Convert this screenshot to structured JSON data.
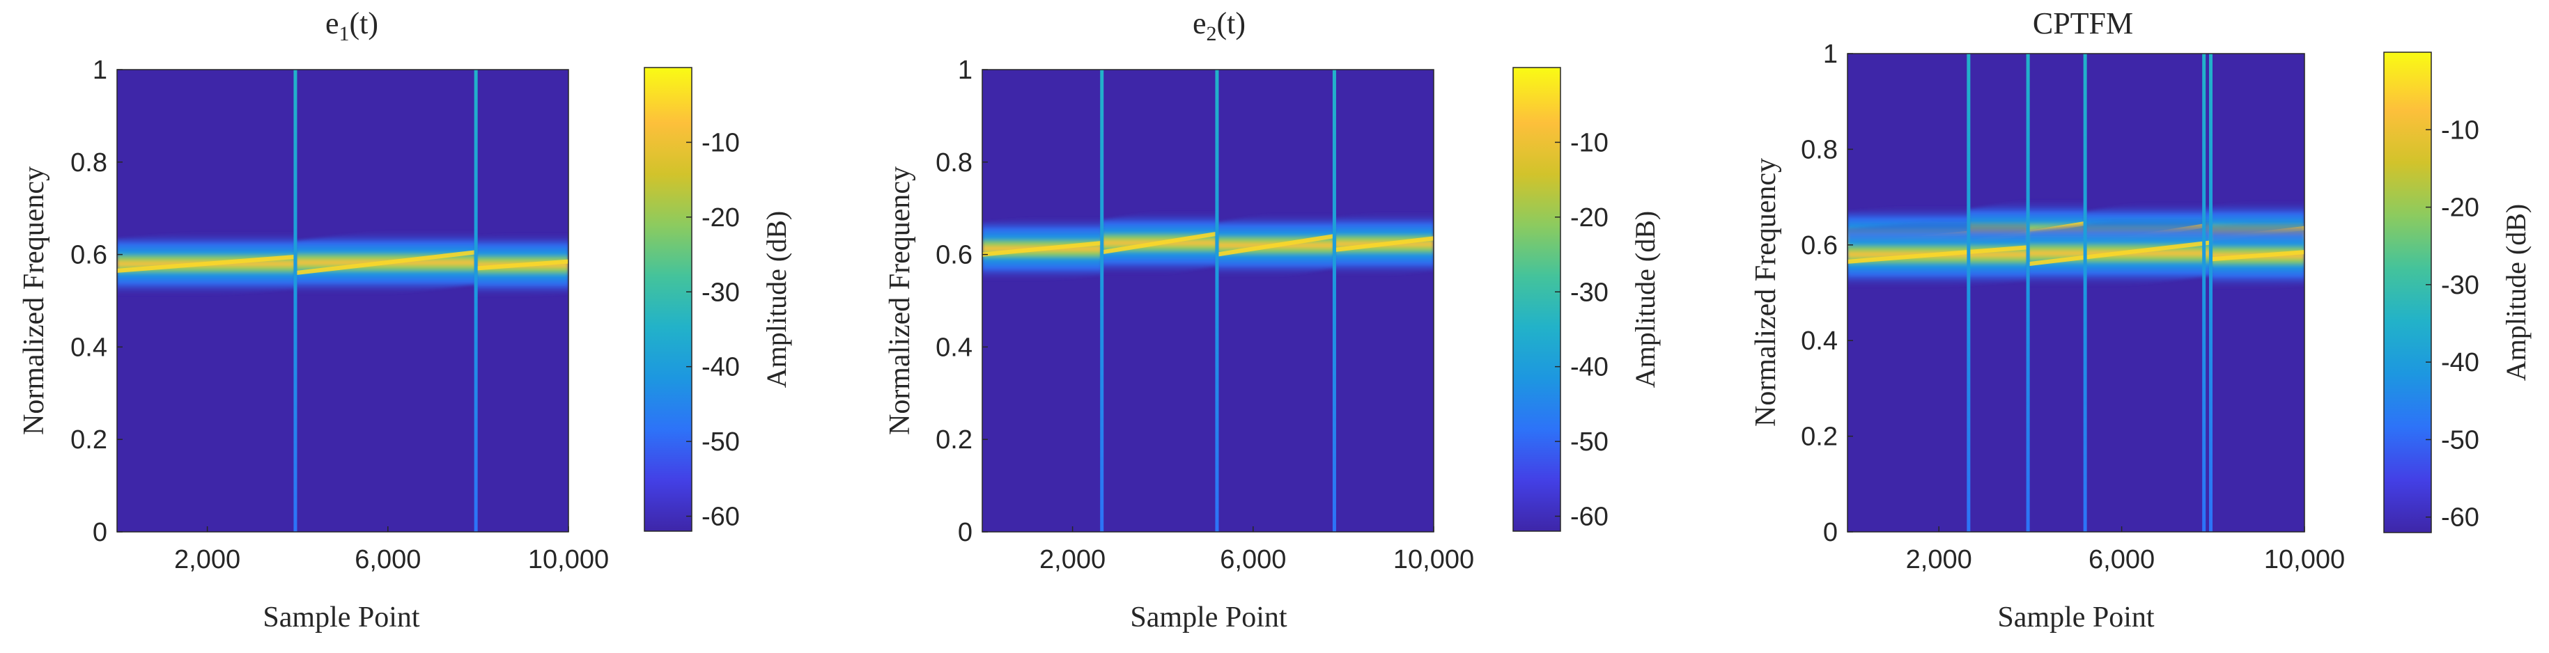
{
  "figure": {
    "description_free": true
  },
  "colors": {
    "background_dark": "#3e26a8",
    "colormap": [
      "#3e26a8",
      "#4340e6",
      "#2d73f8",
      "#1d97e0",
      "#22b2c9",
      "#44c39b",
      "#8ccb5f",
      "#d2c32b",
      "#fdc03b",
      "#f9fb14"
    ]
  },
  "chart_data": [
    {
      "type": "heatmap",
      "title_main": "e",
      "title_sub": "1",
      "title_tail": "(t)",
      "xlabel": "Sample Point",
      "ylabel": "Normalized Frequency",
      "xlim": [
        0,
        10000
      ],
      "ylim": [
        0,
        1
      ],
      "xticks": [
        2000,
        6000,
        10000
      ],
      "xtick_labels": [
        "2,000",
        "6,000",
        "10,000"
      ],
      "yticks": [
        0,
        0.2,
        0.4,
        0.6,
        0.8,
        1
      ],
      "ytick_labels": [
        "0",
        "0.2",
        "0.4",
        "0.6",
        "0.8",
        "1"
      ],
      "colorbar_label": "Amplitude (dB)",
      "colorbar_range": [
        -62,
        0
      ],
      "colorbar_ticks": [
        -10,
        -20,
        -30,
        -40,
        -50,
        -60
      ],
      "colorbar_tick_labels": [
        "-10",
        "-20",
        "-30",
        "-40",
        "-50",
        "-60"
      ],
      "boundaries": [
        3950,
        7950
      ],
      "segments": [
        {
          "x0": 0,
          "x1": 3950,
          "f0": 0.565,
          "f1": 0.595
        },
        {
          "x0": 3950,
          "x1": 7950,
          "f0": 0.56,
          "f1": 0.605
        },
        {
          "x0": 7950,
          "x1": 10000,
          "f0": 0.57,
          "f1": 0.585
        }
      ]
    },
    {
      "type": "heatmap",
      "title_main": "e",
      "title_sub": "2",
      "title_tail": "(t)",
      "xlabel": "Sample Point",
      "ylabel": "Normalized Frequency",
      "xlim": [
        0,
        10000
      ],
      "ylim": [
        0,
        1
      ],
      "xticks": [
        2000,
        6000,
        10000
      ],
      "xtick_labels": [
        "2,000",
        "6,000",
        "10,000"
      ],
      "yticks": [
        0,
        0.2,
        0.4,
        0.6,
        0.8,
        1
      ],
      "ytick_labels": [
        "0",
        "0.2",
        "0.4",
        "0.6",
        "0.8",
        "1"
      ],
      "colorbar_label": "Amplitude (dB)",
      "colorbar_range": [
        -62,
        0
      ],
      "colorbar_ticks": [
        -10,
        -20,
        -30,
        -40,
        -50,
        -60
      ],
      "colorbar_tick_labels": [
        "-10",
        "-20",
        "-30",
        "-40",
        "-50",
        "-60"
      ],
      "boundaries": [
        2650,
        5200,
        7800
      ],
      "segments": [
        {
          "x0": 0,
          "x1": 2650,
          "f0": 0.6,
          "f1": 0.625
        },
        {
          "x0": 2650,
          "x1": 5200,
          "f0": 0.605,
          "f1": 0.645
        },
        {
          "x0": 5200,
          "x1": 7800,
          "f0": 0.6,
          "f1": 0.64
        },
        {
          "x0": 7800,
          "x1": 10000,
          "f0": 0.61,
          "f1": 0.635
        }
      ]
    },
    {
      "type": "heatmap",
      "title_main": "CPTFM",
      "title_sub": "",
      "title_tail": "",
      "xlabel": "Sample Point",
      "ylabel": "Normalized Frequency",
      "xlim": [
        0,
        10000
      ],
      "ylim": [
        0,
        1
      ],
      "xticks": [
        2000,
        6000,
        10000
      ],
      "xtick_labels": [
        "2,000",
        "6,000",
        "10,000"
      ],
      "yticks": [
        0,
        0.2,
        0.4,
        0.6,
        0.8,
        1
      ],
      "ytick_labels": [
        "0",
        "0.2",
        "0.4",
        "0.6",
        "0.8",
        "1"
      ],
      "colorbar_label": "Amplitude (dB)",
      "colorbar_range": [
        -62,
        0
      ],
      "colorbar_ticks": [
        -10,
        -20,
        -30,
        -40,
        -50,
        -60
      ],
      "colorbar_tick_labels": [
        "-10",
        "-20",
        "-30",
        "-40",
        "-50",
        "-60"
      ],
      "boundaries": [
        2650,
        3950,
        5200,
        7800,
        7950
      ],
      "segments": [
        {
          "x0": 0,
          "x1": 2650,
          "f0": 0.6,
          "f1": 0.625
        },
        {
          "x0": 2650,
          "x1": 5200,
          "f0": 0.605,
          "f1": 0.645
        },
        {
          "x0": 5200,
          "x1": 7800,
          "f0": 0.6,
          "f1": 0.64
        },
        {
          "x0": 7800,
          "x1": 10000,
          "f0": 0.61,
          "f1": 0.635
        },
        {
          "x0": 0,
          "x1": 3950,
          "f0": 0.565,
          "f1": 0.595
        },
        {
          "x0": 3950,
          "x1": 7950,
          "f0": 0.56,
          "f1": 0.605
        },
        {
          "x0": 7950,
          "x1": 10000,
          "f0": 0.57,
          "f1": 0.585
        }
      ]
    }
  ]
}
